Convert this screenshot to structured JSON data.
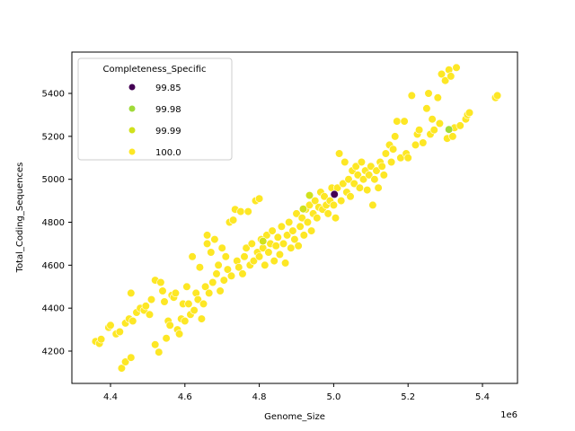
{
  "chart_data": {
    "type": "scatter",
    "title": "",
    "xlabel": "Genome_Size",
    "ylabel": "Total_Coding_Sequences",
    "x_offset_label": "1e6",
    "xlim": [
      4.31,
      5.5
    ],
    "ylim": [
      4060,
      5600
    ],
    "x_ticks": [
      4.4,
      4.6,
      4.8,
      5.0,
      5.2,
      5.4
    ],
    "x_tick_labels": [
      "4.4",
      "4.6",
      "4.8",
      "5.0",
      "5.2",
      "5.4"
    ],
    "y_ticks": [
      4200,
      4400,
      4600,
      4800,
      5000,
      5200,
      5400
    ],
    "y_tick_labels": [
      "4200",
      "4400",
      "4600",
      "4800",
      "5000",
      "5200",
      "5400"
    ],
    "grid": false,
    "legend": {
      "title": "Completeness_Specific",
      "position": "upper left",
      "entries": [
        {
          "label": "99.85",
          "color": "#440154"
        },
        {
          "label": "99.98",
          "color": "#a0da39"
        },
        {
          "label": "99.99",
          "color": "#d0e11c"
        },
        {
          "label": "100.0",
          "color": "#fde725"
        }
      ]
    },
    "series": [
      {
        "name": "99.85",
        "color": "#440154",
        "points": [
          [
            5.002,
            4930
          ]
        ]
      },
      {
        "name": "99.98",
        "color": "#a0da39",
        "points": [
          [
            5.31,
            5232
          ]
        ]
      },
      {
        "name": "99.99",
        "color": "#d0e11c",
        "points": [
          [
            4.935,
            4925
          ],
          [
            4.918,
            4862
          ],
          [
            4.81,
            4712
          ]
        ]
      },
      {
        "name": "100.0",
        "color": "#fde725",
        "points": [
          [
            4.36,
            4245
          ],
          [
            4.37,
            4235
          ],
          [
            4.375,
            4255
          ],
          [
            4.395,
            4310
          ],
          [
            4.4,
            4320
          ],
          [
            4.415,
            4280
          ],
          [
            4.425,
            4290
          ],
          [
            4.43,
            4120
          ],
          [
            4.44,
            4150
          ],
          [
            4.455,
            4170
          ],
          [
            4.44,
            4330
          ],
          [
            4.45,
            4350
          ],
          [
            4.46,
            4340
          ],
          [
            4.455,
            4470
          ],
          [
            4.47,
            4380
          ],
          [
            4.48,
            4400
          ],
          [
            4.49,
            4390
          ],
          [
            4.495,
            4410
          ],
          [
            4.51,
            4440
          ],
          [
            4.505,
            4370
          ],
          [
            4.52,
            4230
          ],
          [
            4.53,
            4195
          ],
          [
            4.52,
            4530
          ],
          [
            4.535,
            4520
          ],
          [
            4.54,
            4480
          ],
          [
            4.545,
            4430
          ],
          [
            4.55,
            4260
          ],
          [
            4.555,
            4340
          ],
          [
            4.56,
            4320
          ],
          [
            4.565,
            4460
          ],
          [
            4.57,
            4450
          ],
          [
            4.575,
            4470
          ],
          [
            4.58,
            4300
          ],
          [
            4.585,
            4280
          ],
          [
            4.59,
            4350
          ],
          [
            4.595,
            4420
          ],
          [
            4.6,
            4340
          ],
          [
            4.605,
            4500
          ],
          [
            4.61,
            4420
          ],
          [
            4.615,
            4370
          ],
          [
            4.62,
            4640
          ],
          [
            4.625,
            4390
          ],
          [
            4.63,
            4470
          ],
          [
            4.635,
            4440
          ],
          [
            4.64,
            4590
          ],
          [
            4.645,
            4350
          ],
          [
            4.65,
            4420
          ],
          [
            4.655,
            4500
          ],
          [
            4.66,
            4700
          ],
          [
            4.66,
            4740
          ],
          [
            4.665,
            4470
          ],
          [
            4.67,
            4660
          ],
          [
            4.675,
            4520
          ],
          [
            4.68,
            4720
          ],
          [
            4.685,
            4560
          ],
          [
            4.69,
            4600
          ],
          [
            4.695,
            4480
          ],
          [
            4.7,
            4680
          ],
          [
            4.705,
            4530
          ],
          [
            4.71,
            4640
          ],
          [
            4.715,
            4580
          ],
          [
            4.72,
            4800
          ],
          [
            4.725,
            4550
          ],
          [
            4.73,
            4810
          ],
          [
            4.735,
            4860
          ],
          [
            4.74,
            4620
          ],
          [
            4.745,
            4590
          ],
          [
            4.75,
            4850
          ],
          [
            4.755,
            4560
          ],
          [
            4.76,
            4640
          ],
          [
            4.765,
            4680
          ],
          [
            4.77,
            4850
          ],
          [
            4.775,
            4600
          ],
          [
            4.78,
            4700
          ],
          [
            4.785,
            4620
          ],
          [
            4.79,
            4900
          ],
          [
            4.795,
            4660
          ],
          [
            4.8,
            4910
          ],
          [
            4.8,
            4640
          ],
          [
            4.805,
            4720
          ],
          [
            4.81,
            4680
          ],
          [
            4.815,
            4600
          ],
          [
            4.82,
            4740
          ],
          [
            4.825,
            4660
          ],
          [
            4.83,
            4700
          ],
          [
            4.835,
            4760
          ],
          [
            4.84,
            4620
          ],
          [
            4.845,
            4690
          ],
          [
            4.85,
            4730
          ],
          [
            4.855,
            4650
          ],
          [
            4.86,
            4780
          ],
          [
            4.865,
            4700
          ],
          [
            4.87,
            4610
          ],
          [
            4.875,
            4740
          ],
          [
            4.88,
            4800
          ],
          [
            4.885,
            4680
          ],
          [
            4.89,
            4760
          ],
          [
            4.895,
            4720
          ],
          [
            4.9,
            4840
          ],
          [
            4.905,
            4690
          ],
          [
            4.91,
            4780
          ],
          [
            4.915,
            4820
          ],
          [
            4.92,
            4740
          ],
          [
            4.925,
            4860
          ],
          [
            4.93,
            4800
          ],
          [
            4.935,
            4880
          ],
          [
            4.94,
            4760
          ],
          [
            4.945,
            4840
          ],
          [
            4.95,
            4900
          ],
          [
            4.955,
            4820
          ],
          [
            4.96,
            4870
          ],
          [
            4.965,
            4940
          ],
          [
            4.97,
            4860
          ],
          [
            4.975,
            4920
          ],
          [
            4.98,
            4880
          ],
          [
            4.985,
            4840
          ],
          [
            4.99,
            4900
          ],
          [
            4.995,
            4960
          ],
          [
            5.0,
            4880
          ],
          [
            5.005,
            4820
          ],
          [
            5.01,
            4960
          ],
          [
            5.015,
            5120
          ],
          [
            5.02,
            4900
          ],
          [
            5.025,
            4980
          ],
          [
            5.03,
            5080
          ],
          [
            5.035,
            4940
          ],
          [
            5.04,
            5000
          ],
          [
            5.045,
            4920
          ],
          [
            5.05,
            5040
          ],
          [
            5.055,
            4980
          ],
          [
            5.06,
            5060
          ],
          [
            5.065,
            5020
          ],
          [
            5.07,
            4960
          ],
          [
            5.075,
            5080
          ],
          [
            5.08,
            5000
          ],
          [
            5.085,
            5040
          ],
          [
            5.09,
            4950
          ],
          [
            5.095,
            5020
          ],
          [
            5.1,
            5060
          ],
          [
            5.105,
            4880
          ],
          [
            5.11,
            5000
          ],
          [
            5.115,
            5040
          ],
          [
            5.12,
            4960
          ],
          [
            5.125,
            5080
          ],
          [
            5.13,
            5060
          ],
          [
            5.135,
            5020
          ],
          [
            5.14,
            5120
          ],
          [
            5.15,
            5160
          ],
          [
            5.155,
            5080
          ],
          [
            5.16,
            5140
          ],
          [
            5.165,
            5200
          ],
          [
            5.17,
            5270
          ],
          [
            5.18,
            5100
          ],
          [
            5.19,
            5270
          ],
          [
            5.195,
            5120
          ],
          [
            5.2,
            5100
          ],
          [
            5.21,
            5390
          ],
          [
            5.22,
            5160
          ],
          [
            5.225,
            5210
          ],
          [
            5.23,
            5230
          ],
          [
            5.24,
            5170
          ],
          [
            5.25,
            5330
          ],
          [
            5.255,
            5400
          ],
          [
            5.26,
            5210
          ],
          [
            5.265,
            5280
          ],
          [
            5.27,
            5230
          ],
          [
            5.28,
            5380
          ],
          [
            5.285,
            5260
          ],
          [
            5.29,
            5490
          ],
          [
            5.3,
            5460
          ],
          [
            5.305,
            5190
          ],
          [
            5.31,
            5510
          ],
          [
            5.315,
            5480
          ],
          [
            5.32,
            5200
          ],
          [
            5.325,
            5240
          ],
          [
            5.33,
            5520
          ],
          [
            5.34,
            5250
          ],
          [
            5.355,
            5280
          ],
          [
            5.36,
            5300
          ],
          [
            5.365,
            5310
          ],
          [
            5.435,
            5380
          ],
          [
            5.44,
            5390
          ]
        ]
      }
    ]
  }
}
